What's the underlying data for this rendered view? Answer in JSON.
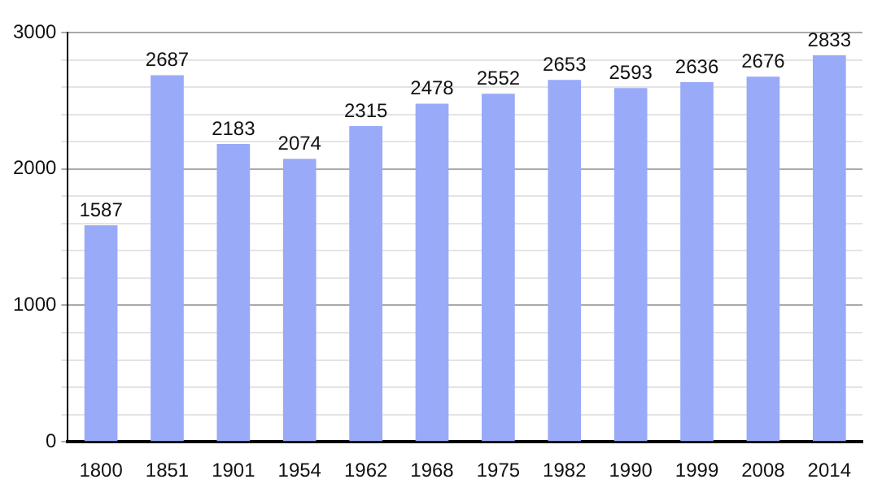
{
  "chart_data": {
    "type": "bar",
    "categories": [
      "1800",
      "1851",
      "1901",
      "1954",
      "1962",
      "1968",
      "1975",
      "1982",
      "1990",
      "1999",
      "2008",
      "2014"
    ],
    "values": [
      1587,
      2687,
      2183,
      2074,
      2315,
      2478,
      2552,
      2653,
      2593,
      2636,
      2676,
      2833
    ],
    "color": "#99aaf8",
    "ylim": [
      0,
      3000
    ],
    "yticks": [
      0,
      {
        "value": 200,
        "label": null
      },
      {
        "value": 400,
        "label": null
      },
      {
        "value": 600,
        "label": null
      },
      {
        "value": 800,
        "label": null
      },
      1000,
      {
        "value": 1200,
        "label": null
      },
      {
        "value": 1400,
        "label": null
      },
      {
        "value": 1600,
        "label": null
      },
      {
        "value": 1800,
        "label": null
      },
      2000,
      {
        "value": 2200,
        "label": null
      },
      {
        "value": 2400,
        "label": null
      },
      {
        "value": 2600,
        "label": null
      },
      {
        "value": 2800,
        "label": null
      },
      3000
    ],
    "grid": "y",
    "legend": false,
    "data_labels": true
  }
}
